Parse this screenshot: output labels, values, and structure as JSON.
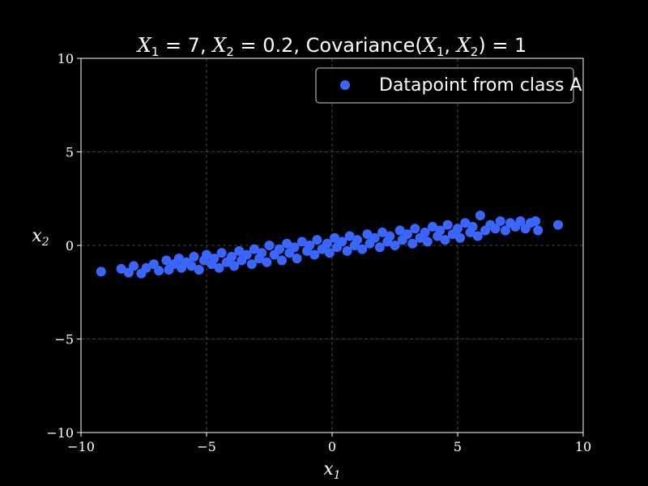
{
  "chart_data": {
    "type": "scatter",
    "title": "X_1 = 7, X_2 = 0.2, Covariance(X_1, X_2) = 1",
    "title_parts": {
      "x1_var": "X",
      "x1_sub": "1",
      "x1_eq": " = 7, ",
      "x2_var": "X",
      "x2_sub": "2",
      "x2_eq": " = 0.2, Covariance(",
      "cov_var1": "X",
      "cov_sub1": "1",
      "cov_sep": ", ",
      "cov_var2": "X",
      "cov_sub2": "2",
      "cov_end": ") = 1"
    },
    "xlabel": {
      "var": "x",
      "sub": "1"
    },
    "ylabel": {
      "var": "x",
      "sub": "2"
    },
    "xlim": [
      -10,
      10
    ],
    "ylim": [
      -10,
      10
    ],
    "xticks": [
      -10,
      -5,
      0,
      5,
      10
    ],
    "yticks": [
      -10,
      -5,
      0,
      5,
      10
    ],
    "xtick_labels": [
      "−10",
      "−5",
      "0",
      "5",
      "10"
    ],
    "ytick_labels": [
      "−10",
      "−5",
      "0",
      "5",
      "10"
    ],
    "grid": true,
    "legend_position": "top-right",
    "series": [
      {
        "name": "Datapoint from class A",
        "color": "#3a66ff",
        "points": [
          [
            -9.2,
            -1.4
          ],
          [
            -8.4,
            -1.25
          ],
          [
            -8.1,
            -1.45
          ],
          [
            -7.9,
            -1.1
          ],
          [
            -7.6,
            -1.5
          ],
          [
            -7.4,
            -1.2
          ],
          [
            -7.1,
            -1.0
          ],
          [
            -6.9,
            -1.35
          ],
          [
            -6.6,
            -0.8
          ],
          [
            -6.5,
            -1.3
          ],
          [
            -6.3,
            -1.0
          ],
          [
            -6.1,
            -0.7
          ],
          [
            -6.0,
            -1.2
          ],
          [
            -5.8,
            -0.9
          ],
          [
            -5.6,
            -1.1
          ],
          [
            -5.5,
            -0.6
          ],
          [
            -5.3,
            -1.3
          ],
          [
            -5.1,
            -0.8
          ],
          [
            -5.0,
            -0.5
          ],
          [
            -4.8,
            -1.0
          ],
          [
            -4.7,
            -0.7
          ],
          [
            -4.5,
            -1.2
          ],
          [
            -4.4,
            -0.4
          ],
          [
            -4.2,
            -0.9
          ],
          [
            -4.0,
            -0.6
          ],
          [
            -3.9,
            -1.1
          ],
          [
            -3.7,
            -0.3
          ],
          [
            -3.6,
            -0.8
          ],
          [
            -3.4,
            -0.5
          ],
          [
            -3.2,
            -1.0
          ],
          [
            -3.1,
            -0.2
          ],
          [
            -2.9,
            -0.7
          ],
          [
            -2.8,
            -0.4
          ],
          [
            -2.6,
            -0.9
          ],
          [
            -2.5,
            0.0
          ],
          [
            -2.3,
            -0.5
          ],
          [
            -2.1,
            -0.2
          ],
          [
            -2.0,
            -0.8
          ],
          [
            -1.8,
            0.1
          ],
          [
            -1.7,
            -0.4
          ],
          [
            -1.5,
            -0.1
          ],
          [
            -1.4,
            -0.7
          ],
          [
            -1.2,
            0.2
          ],
          [
            -1.0,
            -0.3
          ],
          [
            -0.9,
            0.0
          ],
          [
            -0.7,
            -0.5
          ],
          [
            -0.6,
            0.3
          ],
          [
            -0.4,
            -0.2
          ],
          [
            -0.2,
            0.1
          ],
          [
            -0.1,
            -0.4
          ],
          [
            0.1,
            0.4
          ],
          [
            0.2,
            -0.1
          ],
          [
            0.4,
            0.2
          ],
          [
            0.6,
            -0.3
          ],
          [
            0.7,
            0.5
          ],
          [
            0.9,
            0.0
          ],
          [
            1.0,
            0.3
          ],
          [
            1.2,
            -0.2
          ],
          [
            1.4,
            0.6
          ],
          [
            1.5,
            0.1
          ],
          [
            1.7,
            0.4
          ],
          [
            1.9,
            -0.1
          ],
          [
            2.0,
            0.7
          ],
          [
            2.2,
            0.2
          ],
          [
            2.3,
            0.5
          ],
          [
            2.5,
            0.0
          ],
          [
            2.7,
            0.8
          ],
          [
            2.8,
            0.3
          ],
          [
            3.0,
            0.6
          ],
          [
            3.2,
            0.1
          ],
          [
            3.3,
            0.9
          ],
          [
            3.5,
            0.4
          ],
          [
            3.7,
            0.7
          ],
          [
            3.8,
            0.2
          ],
          [
            4.0,
            1.0
          ],
          [
            4.2,
            0.5
          ],
          [
            4.3,
            0.8
          ],
          [
            4.5,
            0.3
          ],
          [
            4.6,
            1.1
          ],
          [
            4.8,
            0.6
          ],
          [
            5.0,
            0.9
          ],
          [
            5.1,
            0.4
          ],
          [
            5.3,
            1.2
          ],
          [
            5.5,
            0.7
          ],
          [
            5.6,
            1.0
          ],
          [
            5.8,
            0.5
          ],
          [
            5.9,
            1.6
          ],
          [
            6.1,
            0.8
          ],
          [
            6.3,
            1.1
          ],
          [
            6.5,
            0.9
          ],
          [
            6.7,
            1.3
          ],
          [
            6.9,
            0.8
          ],
          [
            7.1,
            1.2
          ],
          [
            7.3,
            1.0
          ],
          [
            7.5,
            1.3
          ],
          [
            7.7,
            0.9
          ],
          [
            7.9,
            1.2
          ],
          [
            8.1,
            1.3
          ],
          [
            8.2,
            0.8
          ],
          [
            9.0,
            1.1
          ]
        ]
      }
    ]
  }
}
